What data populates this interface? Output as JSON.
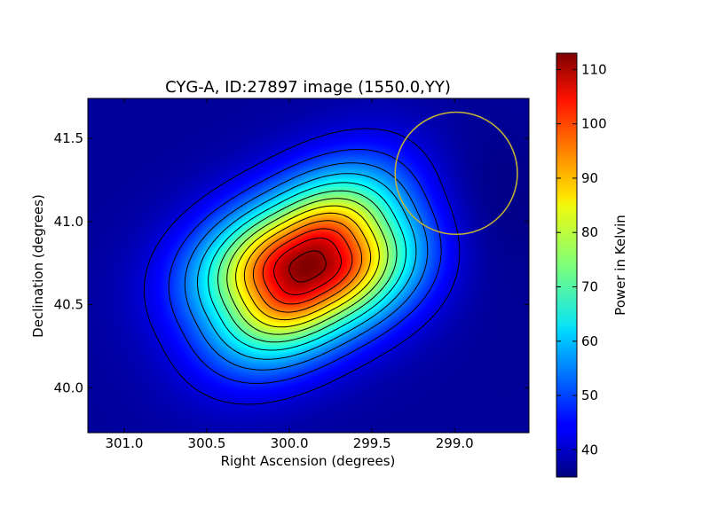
{
  "chart_data": {
    "type": "heatmap",
    "title": "CYG-A, ID:27897 image (1550.0,YY)",
    "xlabel": "Right Ascension (degrees)",
    "ylabel": "Declination (degrees)",
    "xlim": [
      301.22,
      298.55
    ],
    "ylim": [
      39.73,
      41.74
    ],
    "x_ticks": [
      301.0,
      300.5,
      300.0,
      299.5,
      299.0
    ],
    "x_tick_labels": [
      "301.0",
      "300.5",
      "300.0",
      "299.5",
      "299.0"
    ],
    "y_ticks": [
      40.0,
      40.5,
      41.0,
      41.5
    ],
    "y_tick_labels": [
      "40.0",
      "40.5",
      "41.0",
      "41.5"
    ],
    "colormap": "jet",
    "colorbar": {
      "label": "Power in Kelvin",
      "range": [
        35,
        113
      ],
      "ticks": [
        40,
        50,
        60,
        70,
        80,
        90,
        100,
        110
      ],
      "tick_labels": [
        "40",
        "50",
        "60",
        "70",
        "80",
        "90",
        "100",
        "110"
      ]
    },
    "peak": {
      "ra": 299.89,
      "dec": 40.73,
      "value": 113
    },
    "background_level": 37,
    "circle": {
      "ra": 298.99,
      "dec": 41.29,
      "radius_deg": 0.37,
      "color": "#c8b432"
    },
    "contour_color": "#000000",
    "grid": false
  }
}
